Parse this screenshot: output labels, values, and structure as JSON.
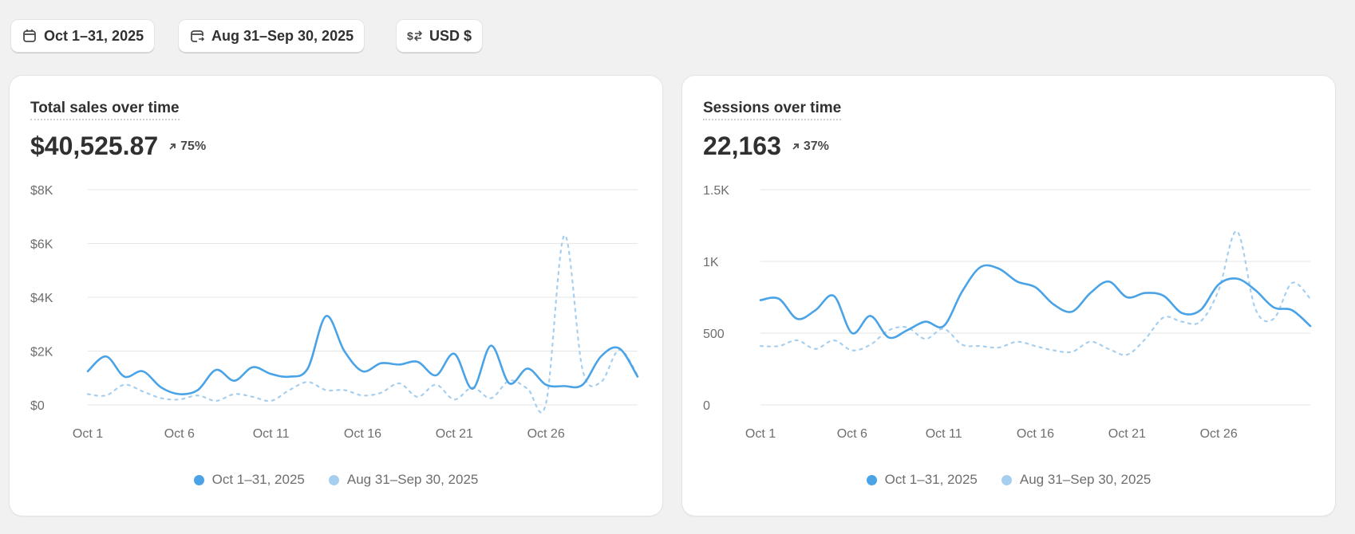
{
  "toolbar": {
    "date_range": "Oct 1–31, 2025",
    "compare_range": "Aug 31–Sep 30, 2025",
    "currency": "USD $"
  },
  "colors": {
    "current": "#4aa3e6",
    "previous": "#a6cfef"
  },
  "legend": {
    "current": "Oct 1–31, 2025",
    "previous": "Aug 31–Sep 30, 2025"
  },
  "cards": [
    {
      "title": "Total sales over time",
      "value": "$40,525.87",
      "change": "75%"
    },
    {
      "title": "Sessions over time",
      "value": "22,163",
      "change": "37%"
    }
  ],
  "chart_data": [
    {
      "type": "line",
      "title": "Total sales over time",
      "x_ticks": [
        "Oct 1",
        "Oct 6",
        "Oct 11",
        "Oct 16",
        "Oct 21",
        "Oct 26"
      ],
      "y_ticks": [
        "$0",
        "$2K",
        "$4K",
        "$6K",
        "$8K"
      ],
      "ylim": [
        0,
        8000
      ],
      "grid": true,
      "legend_position": "bottom",
      "series": [
        {
          "name": "Oct 1–31, 2025",
          "style": "solid",
          "values": [
            1250,
            1800,
            1050,
            1250,
            650,
            400,
            550,
            1300,
            900,
            1400,
            1150,
            1050,
            1350,
            3300,
            2000,
            1250,
            1550,
            1500,
            1600,
            1100,
            1900,
            600,
            2200,
            800,
            1350,
            750,
            700,
            750,
            1800,
            2100,
            1050
          ]
        },
        {
          "name": "Aug 31–Sep 30, 2025",
          "style": "dashed",
          "values": [
            400,
            350,
            750,
            500,
            250,
            200,
            350,
            150,
            400,
            300,
            150,
            550,
            850,
            550,
            550,
            350,
            450,
            800,
            300,
            750,
            200,
            650,
            250,
            900,
            600,
            50,
            6300,
            1300,
            850,
            2050,
            1100
          ]
        }
      ]
    },
    {
      "type": "line",
      "title": "Sessions over time",
      "x_ticks": [
        "Oct 1",
        "Oct 6",
        "Oct 11",
        "Oct 16",
        "Oct 21",
        "Oct 26"
      ],
      "y_ticks": [
        "0",
        "500",
        "1K",
        "1.5K"
      ],
      "ylim": [
        0,
        1500
      ],
      "grid": true,
      "legend_position": "bottom",
      "series": [
        {
          "name": "Oct 1–31, 2025",
          "style": "solid",
          "values": [
            730,
            740,
            600,
            660,
            760,
            500,
            620,
            470,
            520,
            580,
            550,
            790,
            960,
            950,
            860,
            820,
            700,
            650,
            780,
            860,
            750,
            780,
            760,
            640,
            660,
            840,
            880,
            800,
            680,
            660,
            550
          ]
        },
        {
          "name": "Aug 31–Sep 30, 2025",
          "style": "dashed",
          "values": [
            410,
            410,
            450,
            390,
            450,
            380,
            420,
            520,
            540,
            460,
            530,
            420,
            410,
            400,
            440,
            410,
            380,
            370,
            440,
            390,
            350,
            460,
            610,
            580,
            580,
            800,
            1210,
            670,
            600,
            850,
            740
          ]
        }
      ]
    }
  ]
}
